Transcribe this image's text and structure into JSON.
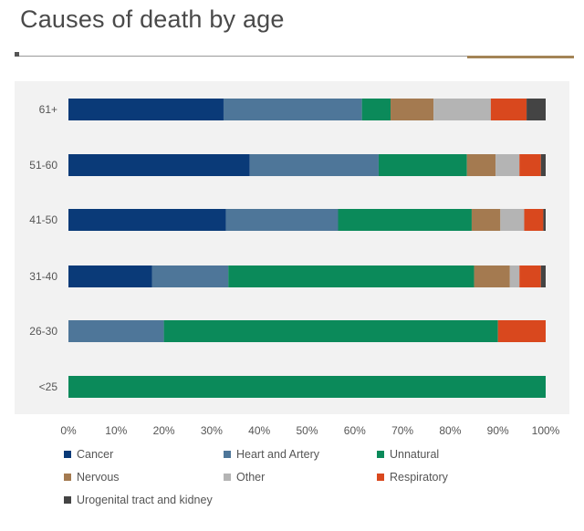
{
  "chart_data": {
    "type": "bar",
    "orientation": "horizontal",
    "stacked": true,
    "title": "Causes of death by age",
    "categories": [
      "61+",
      "51-60",
      "41-50",
      "31-40",
      "26-30",
      "<25"
    ],
    "xlim": [
      0,
      100
    ],
    "x_ticks": [
      "0%",
      "10%",
      "20%",
      "30%",
      "40%",
      "50%",
      "60%",
      "70%",
      "80%",
      "90%",
      "100%"
    ],
    "legend_position": "bottom",
    "grid": false,
    "series": [
      {
        "name": "Cancer",
        "color": "#0a3a78",
        "values": [
          32.5,
          38,
          33,
          17.5,
          0,
          0
        ]
      },
      {
        "name": "Heart and Artery",
        "color": "#4e7699",
        "values": [
          29,
          27,
          23.5,
          16,
          20,
          0
        ]
      },
      {
        "name": "Unnatural",
        "color": "#0b8a5a",
        "values": [
          6,
          18.5,
          28,
          51.5,
          70,
          100
        ]
      },
      {
        "name": "Nervous",
        "color": "#a47a50",
        "values": [
          9,
          6,
          6,
          7.5,
          0,
          0
        ]
      },
      {
        "name": "Other",
        "color": "#b4b4b4",
        "values": [
          12,
          5,
          5,
          2,
          0,
          0
        ]
      },
      {
        "name": "Respiratory",
        "color": "#d9481e",
        "values": [
          7.5,
          4.5,
          4,
          4.5,
          10,
          0
        ]
      },
      {
        "name": "Urogenital tract and kidney",
        "color": "#444444",
        "values": [
          4,
          1,
          0.5,
          1,
          0,
          0
        ]
      }
    ]
  }
}
